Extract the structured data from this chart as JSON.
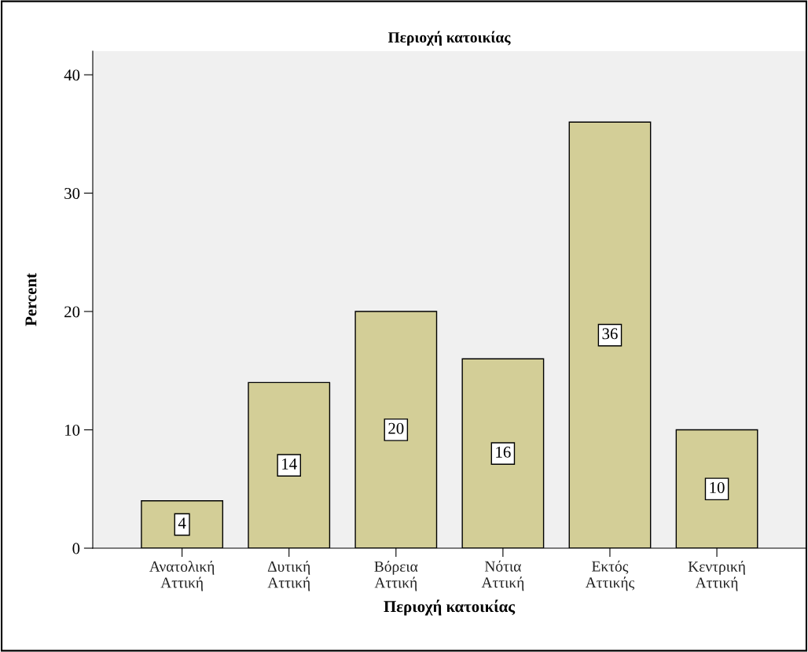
{
  "chart_data": {
    "type": "bar",
    "title": "Περιοχή κατοικίας",
    "xlabel": "Περιοχή κατοικίας",
    "ylabel": "Percent",
    "categories": [
      "Ανατολική\nΑττική",
      "Δυτική\nΑττική",
      "Βόρεια\nΑττική",
      "Νότια\nΑττική",
      "Εκτός\nΑττικής",
      "Κεντρική\nΑττική"
    ],
    "values": [
      4,
      14,
      20,
      16,
      36,
      10
    ],
    "color": "#d3ce97",
    "ylim": [
      0,
      42
    ],
    "yticks": [
      0,
      10,
      20,
      30,
      40
    ],
    "grid": false,
    "legend": false,
    "data_labels": true
  }
}
